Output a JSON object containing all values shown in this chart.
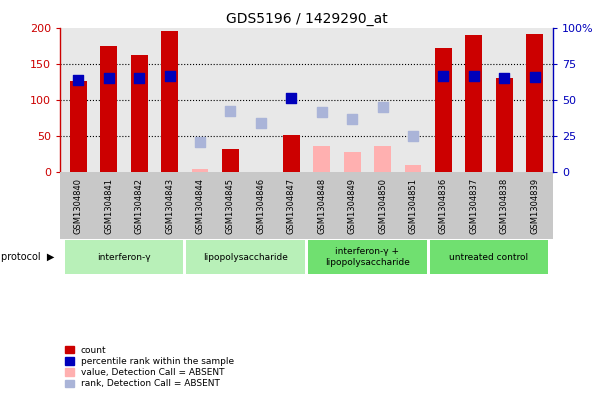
{
  "title": "GDS5196 / 1429290_at",
  "samples": [
    "GSM1304840",
    "GSM1304841",
    "GSM1304842",
    "GSM1304843",
    "GSM1304844",
    "GSM1304845",
    "GSM1304846",
    "GSM1304847",
    "GSM1304848",
    "GSM1304849",
    "GSM1304850",
    "GSM1304851",
    "GSM1304836",
    "GSM1304837",
    "GSM1304838",
    "GSM1304839"
  ],
  "count_present": [
    126,
    175,
    162,
    195,
    null,
    32,
    null,
    51,
    null,
    null,
    null,
    null,
    172,
    190,
    130,
    191
  ],
  "count_absent": [
    null,
    null,
    null,
    null,
    5,
    null,
    null,
    null,
    36,
    28,
    36,
    10,
    null,
    null,
    null,
    null
  ],
  "rank_present": [
    64,
    65,
    65,
    66.5,
    null,
    null,
    null,
    51,
    null,
    null,
    null,
    null,
    66.5,
    66.5,
    65,
    66
  ],
  "rank_absent": [
    null,
    null,
    null,
    null,
    null,
    null,
    null,
    null,
    42.5,
    37.5,
    45,
    25,
    null,
    null,
    null,
    null
  ],
  "rank_dots_absent": [
    null,
    null,
    null,
    null,
    21,
    42.5,
    34,
    null,
    41.5,
    36.5,
    45,
    25,
    null,
    null,
    null,
    null
  ],
  "groups": [
    {
      "label": "interferon-γ",
      "start": 0,
      "end": 3,
      "color": "#b8f0b8"
    },
    {
      "label": "lipopolysaccharide",
      "start": 4,
      "end": 7,
      "color": "#b8f0b8"
    },
    {
      "label": "interferon-γ +\nlipopolysaccharide",
      "start": 8,
      "end": 11,
      "color": "#70e070"
    },
    {
      "label": "untreated control",
      "start": 12,
      "end": 15,
      "color": "#70e070"
    }
  ],
  "left_ylim": [
    0,
    200
  ],
  "right_ylim": [
    0,
    100
  ],
  "left_yticks": [
    0,
    50,
    100,
    150,
    200
  ],
  "right_yticks": [
    0,
    25,
    50,
    75,
    100
  ],
  "right_yticklabels": [
    "0",
    "25",
    "50",
    "75",
    "100%"
  ],
  "bar_color_red": "#cc0000",
  "bar_color_pink": "#ffb0b0",
  "dot_color_blue": "#0000bb",
  "dot_color_lightblue": "#aab4d8",
  "bg_plot": "#e8e8e8",
  "bg_xtick": "#c8c8c8",
  "bar_width": 0.55,
  "dot_size": 55
}
